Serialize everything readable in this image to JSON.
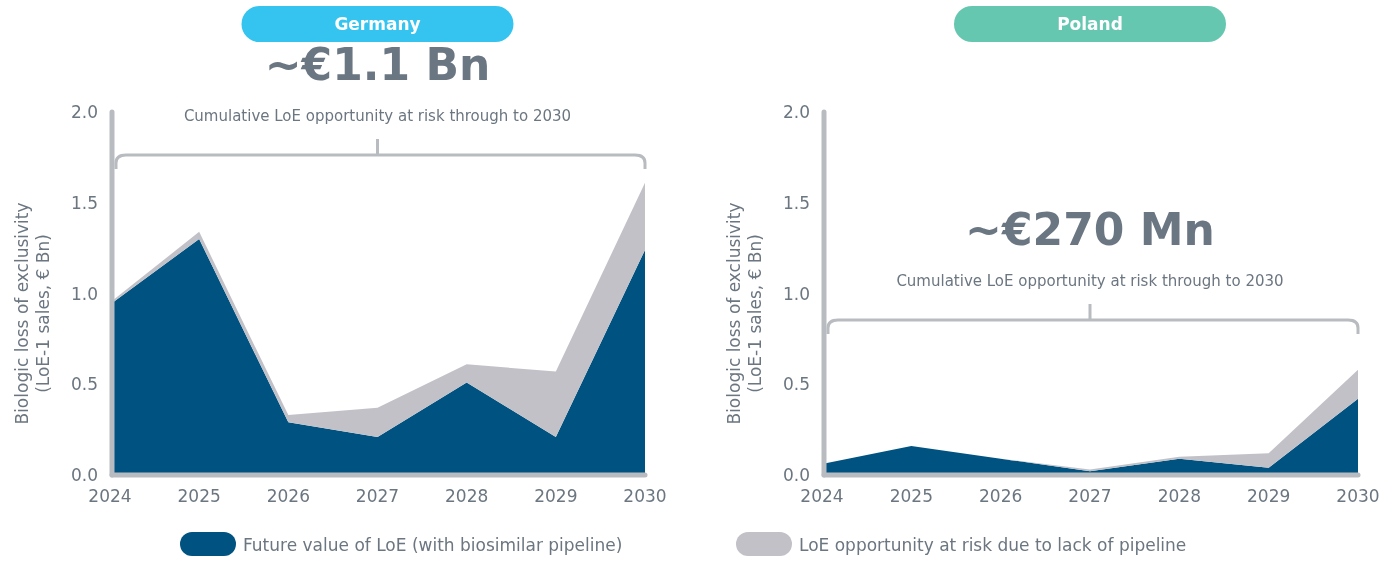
{
  "chart_data": [
    {
      "type": "area",
      "title": "Germany",
      "stacked": true,
      "categories": [
        "2024",
        "2025",
        "2026",
        "2027",
        "2028",
        "2029",
        "2030"
      ],
      "ylabel": "Biologic loss of exclusivity\n(LoE-1 sales, € Bn)",
      "ylim": [
        0,
        2
      ],
      "yticks": [
        {
          "value": 0,
          "label": "0.0"
        },
        {
          "value": 0.5,
          "label": "0.5"
        },
        {
          "value": 1,
          "label": "1.0"
        },
        {
          "value": 1.5,
          "label": "1.5"
        },
        {
          "value": 2,
          "label": "2.0"
        }
      ],
      "legend": "bottom",
      "annotations": [
        "~€1.1 Bn",
        "Cumulative LoE opportunity at risk through to 2030"
      ],
      "series": [
        {
          "name": "Future value of LoE (with biosimilar pipeline)",
          "color": "#005280",
          "values": [
            0.94,
            1.3,
            0.29,
            0.21,
            0.51,
            0.21,
            1.24
          ]
        },
        {
          "name": "LoE opportunity at risk due to lack of pipeline",
          "color": "#c2c1c7",
          "values": [
            0.01,
            0.04,
            0.04,
            0.16,
            0.1,
            0.36,
            0.37
          ]
        }
      ]
    },
    {
      "type": "area",
      "title": "Poland",
      "stacked": true,
      "categories": [
        "2024",
        "2025",
        "2026",
        "2027",
        "2028",
        "2029",
        "2030"
      ],
      "ylabel": "Biologic loss of exclusivity\n(LoE-1 sales, € Bn)",
      "ylim": [
        0,
        2
      ],
      "yticks": [
        {
          "value": 0,
          "label": "0.0"
        },
        {
          "value": 0.5,
          "label": "0.5"
        },
        {
          "value": 1,
          "label": "1.0"
        },
        {
          "value": 1.5,
          "label": "1.5"
        },
        {
          "value": 2,
          "label": "2.0"
        }
      ],
      "annotations": [
        "~€270 Mn",
        "Cumulative LoE opportunity at risk through to 2030"
      ],
      "series": [
        {
          "color": "#005280",
          "values": [
            0.06,
            0.16,
            0.09,
            0.02,
            0.09,
            0.04,
            0.42
          ]
        },
        {
          "color": "#c2c1c7",
          "values": [
            0.0,
            0.0,
            0.0,
            0.01,
            0.01,
            0.08,
            0.16
          ]
        }
      ]
    }
  ]
}
